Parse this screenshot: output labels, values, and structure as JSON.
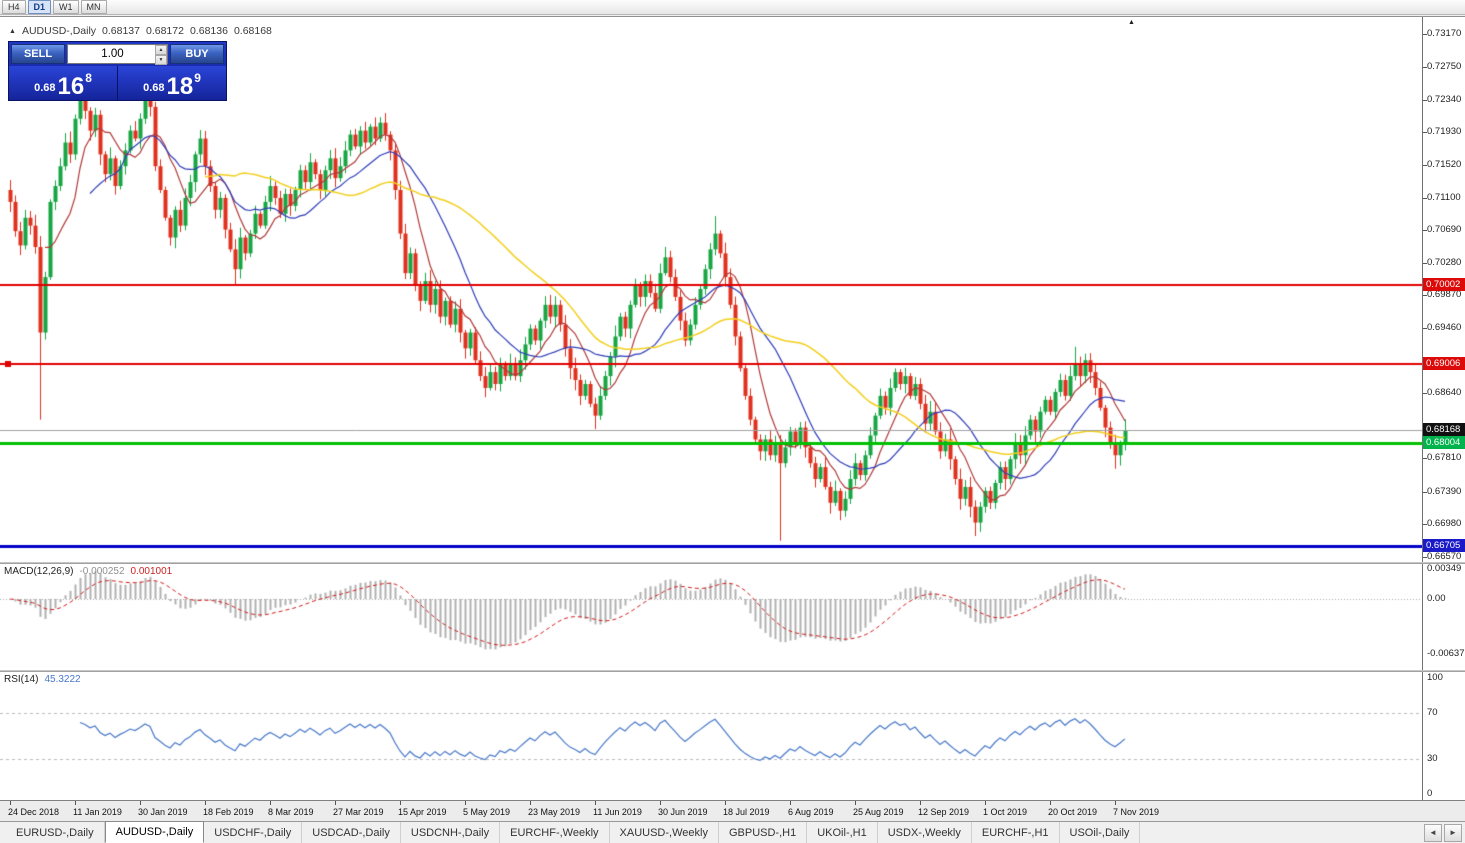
{
  "timeframe_toolbar": {
    "buttons": [
      "H4",
      "D1",
      "W1",
      "MN"
    ],
    "active": "D1"
  },
  "icons": {
    "spin_up": "▲",
    "spin_down": "▼",
    "shift_marker": "▲",
    "collapse": "▲",
    "scroll_left": "◄",
    "scroll_right": "►"
  },
  "chart_header": {
    "symbol": "AUDUSD-,Daily",
    "open": "0.68137",
    "high": "0.68172",
    "low": "0.68136",
    "close": "0.68168"
  },
  "trade_panel": {
    "sell_label": "SELL",
    "buy_label": "BUY",
    "volume": "1.00",
    "sell_price": {
      "main": "0.68",
      "pips": "16",
      "point": "8"
    },
    "buy_price": {
      "main": "0.68",
      "pips": "18",
      "point": "9"
    }
  },
  "price_axis": {
    "ticks": [
      "0.73170",
      "0.72750",
      "0.72340",
      "0.71930",
      "0.71520",
      "0.71100",
      "0.70690",
      "0.70280",
      "0.69870",
      "0.69460",
      "0.68640",
      "0.67810",
      "0.67390",
      "0.66980",
      "0.66570"
    ],
    "badges": [
      {
        "label": "0.70002",
        "value": 0.70002,
        "bg": "#dd0a0a"
      },
      {
        "label": "0.69006",
        "value": 0.69006,
        "bg": "#dd0a0a"
      },
      {
        "label": "0.68168",
        "value": 0.68168,
        "bg": "#111111"
      },
      {
        "label": "0.68004",
        "value": 0.68004,
        "bg": "#00b34d"
      },
      {
        "label": "0.66705",
        "value": 0.66705,
        "bg": "#1a1ac8"
      }
    ]
  },
  "chart_data": {
    "type": "candlestick",
    "symbol": "AUDUSD",
    "period": "Daily",
    "title": "AUDUSD-,Daily",
    "ylim": [
      0.66502,
      0.73385
    ],
    "grid": false,
    "up_color": "#17a643",
    "down_color": "#e0311f",
    "x_axis_labels": [
      "24 Dec 2018",
      "11 Jan 2019",
      "30 Jan 2019",
      "18 Feb 2019",
      "8 Mar 2019",
      "27 Mar 2019",
      "15 Apr 2019",
      "5 May 2019",
      "23 May 2019",
      "11 Jun 2019",
      "30 Jun 2019",
      "18 Jul 2019",
      "6 Aug 2019",
      "25 Aug 2019",
      "12 Sep 2019",
      "1 Oct 2019",
      "20 Oct 2019",
      "7 Nov 2019"
    ],
    "label_every": 13,
    "open_rule": "previous_close",
    "closes": [
      0.7105,
      0.7068,
      0.705,
      0.7085,
      0.7075,
      0.7048,
      0.694,
      0.701,
      0.7105,
      0.7125,
      0.715,
      0.718,
      0.7165,
      0.721,
      0.7235,
      0.722,
      0.7195,
      0.7215,
      0.7165,
      0.714,
      0.716,
      0.7125,
      0.715,
      0.717,
      0.7195,
      0.7185,
      0.721,
      0.724,
      0.7225,
      0.715,
      0.712,
      0.7085,
      0.706,
      0.7095,
      0.7075,
      0.711,
      0.713,
      0.7165,
      0.7185,
      0.715,
      0.7125,
      0.7095,
      0.711,
      0.707,
      0.7045,
      0.702,
      0.706,
      0.704,
      0.7065,
      0.709,
      0.7075,
      0.7105,
      0.7125,
      0.711,
      0.709,
      0.7115,
      0.71,
      0.712,
      0.7145,
      0.713,
      0.7155,
      0.714,
      0.712,
      0.7145,
      0.716,
      0.7135,
      0.715,
      0.717,
      0.719,
      0.7175,
      0.7195,
      0.718,
      0.72,
      0.7185,
      0.7205,
      0.719,
      0.717,
      0.712,
      0.7065,
      0.7015,
      0.704,
      0.7,
      0.698,
      0.7005,
      0.6975,
      0.6995,
      0.696,
      0.698,
      0.695,
      0.697,
      0.694,
      0.692,
      0.694,
      0.6905,
      0.6885,
      0.687,
      0.689,
      0.6875,
      0.69,
      0.6885,
      0.69,
      0.6885,
      0.6905,
      0.6925,
      0.6945,
      0.693,
      0.6955,
      0.6975,
      0.696,
      0.6975,
      0.695,
      0.692,
      0.6895,
      0.688,
      0.686,
      0.6875,
      0.685,
      0.6835,
      0.686,
      0.6885,
      0.691,
      0.6935,
      0.696,
      0.6945,
      0.6975,
      0.7,
      0.6985,
      0.7005,
      0.699,
      0.697,
      0.7015,
      0.7035,
      0.701,
      0.6985,
      0.6955,
      0.693,
      0.695,
      0.6975,
      0.6995,
      0.702,
      0.7045,
      0.7065,
      0.704,
      0.701,
      0.6975,
      0.6935,
      0.6895,
      0.686,
      0.683,
      0.6805,
      0.679,
      0.6805,
      0.6785,
      0.68,
      0.6775,
      0.6795,
      0.6815,
      0.68,
      0.682,
      0.6795,
      0.6775,
      0.6755,
      0.677,
      0.6745,
      0.6725,
      0.674,
      0.6715,
      0.673,
      0.6755,
      0.6775,
      0.676,
      0.6785,
      0.681,
      0.6835,
      0.686,
      0.6845,
      0.687,
      0.689,
      0.6875,
      0.6885,
      0.686,
      0.6875,
      0.685,
      0.6825,
      0.684,
      0.6815,
      0.679,
      0.6805,
      0.678,
      0.6755,
      0.673,
      0.6745,
      0.672,
      0.67,
      0.672,
      0.674,
      0.6725,
      0.675,
      0.677,
      0.6755,
      0.678,
      0.68,
      0.6785,
      0.681,
      0.683,
      0.6815,
      0.684,
      0.6855,
      0.684,
      0.6865,
      0.688,
      0.686,
      0.6885,
      0.69,
      0.6885,
      0.6905,
      0.689,
      0.687,
      0.6845,
      0.682,
      0.68,
      0.6785,
      0.68,
      0.68168
    ],
    "wick_overrides": [
      {
        "i": 6,
        "low": 0.683
      },
      {
        "i": 14,
        "high": 0.7258
      },
      {
        "i": 27,
        "high": 0.7262
      },
      {
        "i": 45,
        "low": 0.7
      },
      {
        "i": 74,
        "high": 0.7212
      },
      {
        "i": 117,
        "low": 0.6818
      },
      {
        "i": 141,
        "high": 0.7087
      },
      {
        "i": 154,
        "low": 0.6677
      },
      {
        "i": 166,
        "low": 0.6703
      },
      {
        "i": 193,
        "low": 0.6683
      },
      {
        "i": 213,
        "high": 0.6922
      },
      {
        "i": 221,
        "low": 0.6768
      }
    ],
    "overlays": [
      {
        "type": "sma",
        "period": 8,
        "color": "#b03a3a",
        "width": 1.2
      },
      {
        "type": "sma",
        "period": 17,
        "color": "#2f3db8",
        "width": 1.2
      },
      {
        "type": "sma",
        "period": 40,
        "color": "#f2cf1d",
        "width": 1.5
      }
    ],
    "hlines": [
      {
        "value": 0.70002,
        "color": "#e00000",
        "width": 2,
        "anchor": false
      },
      {
        "value": 0.69006,
        "color": "#e00000",
        "width": 2,
        "anchor": true
      },
      {
        "value": 0.68004,
        "color": "#00c000",
        "width": 3,
        "anchor": false
      },
      {
        "value": 0.66705,
        "color": "#0000c8",
        "width": 3,
        "anchor": false
      }
    ],
    "current_price": {
      "value": 0.68168,
      "line_color": "#a0a0a0"
    }
  },
  "macd_panel": {
    "label": "MACD(12,26,9)",
    "value_main": "-0.000252",
    "value_signal": "0.001001",
    "fast": 12,
    "slow": 26,
    "signal_period": 9,
    "ylim": [
      -0.00826,
      0.00407
    ],
    "histogram_color": "#b0b0b0",
    "signal_color": "#d02020",
    "scale": [
      {
        "label": "0.00349",
        "value": 0.00349
      },
      {
        "label": "0.00",
        "value": 0
      },
      {
        "label": "-0.00637",
        "value": -0.00637
      }
    ]
  },
  "rsi_panel": {
    "label": "RSI(14)",
    "value": "45.3222",
    "period": 14,
    "line_color": "#4878c8",
    "levels": [
      70,
      30
    ],
    "ylim": [
      0,
      100
    ],
    "scale": [
      {
        "label": "100",
        "value": 100
      },
      {
        "label": "70",
        "value": 70
      },
      {
        "label": "30",
        "value": 30
      },
      {
        "label": "0",
        "value": 0
      }
    ]
  },
  "bottom_tabs": {
    "items": [
      "EURUSD-,Daily",
      "AUDUSD-,Daily",
      "USDCHF-,Daily",
      "USDCAD-,Daily",
      "USDCNH-,Daily",
      "EURCHF-,Weekly",
      "XAUUSD-,Weekly",
      "GBPUSD-,H1",
      "UKOil-,H1",
      "USDX-,Weekly",
      "EURCHF-,H1",
      "USOil-,Daily"
    ],
    "active_index": 1,
    "scroll_left_icon": "◄",
    "scroll_right_icon": "►"
  }
}
